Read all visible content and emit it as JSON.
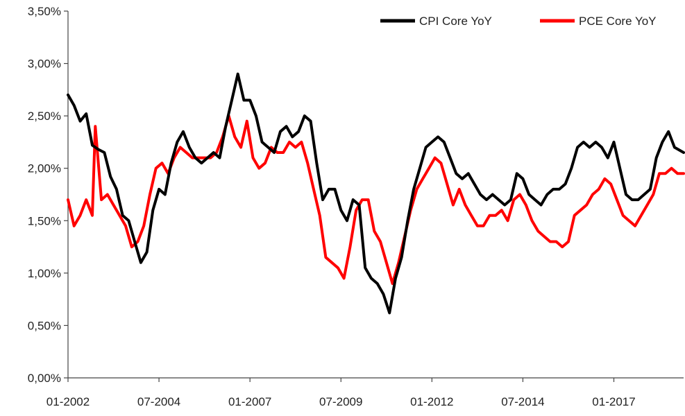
{
  "chart_data": {
    "type": "line",
    "title": "",
    "xlabel": "",
    "ylabel": "",
    "xlim": [
      "2002-01",
      "2018-12"
    ],
    "ylim": [
      0,
      3.5
    ],
    "y_ticks": [
      0,
      0.5,
      1.0,
      1.5,
      2.0,
      2.5,
      3.0,
      3.5
    ],
    "y_tick_labels": [
      "0,00%",
      "0,50%",
      "1,00%",
      "1,50%",
      "2,00%",
      "2,50%",
      "3,00%",
      "3,50%"
    ],
    "x_ticks": [
      "2002-01",
      "2004-07",
      "2007-01",
      "2009-07",
      "2012-01",
      "2014-07",
      "2017-01"
    ],
    "x_tick_labels": [
      "01-2002",
      "07-2004",
      "01-2007",
      "07-2009",
      "01-2012",
      "07-2014",
      "01-2017"
    ],
    "grid": false,
    "legend_position": "top-right",
    "series": [
      {
        "name": "CPI Core YoY",
        "color": "#000000",
        "points": [
          [
            "2002-01",
            2.7
          ],
          [
            "2002-03",
            2.6
          ],
          [
            "2002-05",
            2.45
          ],
          [
            "2002-07",
            2.52
          ],
          [
            "2002-09",
            2.22
          ],
          [
            "2002-11",
            2.18
          ],
          [
            "2003-01",
            2.15
          ],
          [
            "2003-03",
            1.92
          ],
          [
            "2003-05",
            1.8
          ],
          [
            "2003-07",
            1.55
          ],
          [
            "2003-09",
            1.5
          ],
          [
            "2003-11",
            1.3
          ],
          [
            "2004-01",
            1.1
          ],
          [
            "2004-03",
            1.2
          ],
          [
            "2004-05",
            1.6
          ],
          [
            "2004-07",
            1.8
          ],
          [
            "2004-09",
            1.75
          ],
          [
            "2004-11",
            2.05
          ],
          [
            "2005-01",
            2.25
          ],
          [
            "2005-03",
            2.35
          ],
          [
            "2005-05",
            2.2
          ],
          [
            "2005-07",
            2.1
          ],
          [
            "2005-09",
            2.05
          ],
          [
            "2005-11",
            2.1
          ],
          [
            "2006-01",
            2.15
          ],
          [
            "2006-03",
            2.1
          ],
          [
            "2006-05",
            2.4
          ],
          [
            "2006-07",
            2.65
          ],
          [
            "2006-09",
            2.9
          ],
          [
            "2006-11",
            2.65
          ],
          [
            "2007-01",
            2.65
          ],
          [
            "2007-03",
            2.5
          ],
          [
            "2007-05",
            2.25
          ],
          [
            "2007-07",
            2.2
          ],
          [
            "2007-09",
            2.15
          ],
          [
            "2007-11",
            2.35
          ],
          [
            "2008-01",
            2.4
          ],
          [
            "2008-03",
            2.3
          ],
          [
            "2008-05",
            2.35
          ],
          [
            "2008-07",
            2.5
          ],
          [
            "2008-09",
            2.45
          ],
          [
            "2008-11",
            2.05
          ],
          [
            "2009-01",
            1.7
          ],
          [
            "2009-03",
            1.8
          ],
          [
            "2009-05",
            1.8
          ],
          [
            "2009-07",
            1.6
          ],
          [
            "2009-09",
            1.5
          ],
          [
            "2009-11",
            1.7
          ],
          [
            "2010-01",
            1.65
          ],
          [
            "2010-03",
            1.05
          ],
          [
            "2010-05",
            0.95
          ],
          [
            "2010-07",
            0.9
          ],
          [
            "2010-09",
            0.8
          ],
          [
            "2010-11",
            0.62
          ],
          [
            "2011-01",
            0.95
          ],
          [
            "2011-03",
            1.15
          ],
          [
            "2011-05",
            1.5
          ],
          [
            "2011-07",
            1.8
          ],
          [
            "2011-09",
            2.0
          ],
          [
            "2011-11",
            2.2
          ],
          [
            "2012-01",
            2.25
          ],
          [
            "2012-03",
            2.3
          ],
          [
            "2012-05",
            2.25
          ],
          [
            "2012-07",
            2.1
          ],
          [
            "2012-09",
            1.95
          ],
          [
            "2012-11",
            1.9
          ],
          [
            "2013-01",
            1.95
          ],
          [
            "2013-03",
            1.85
          ],
          [
            "2013-05",
            1.75
          ],
          [
            "2013-07",
            1.7
          ],
          [
            "2013-09",
            1.75
          ],
          [
            "2013-11",
            1.7
          ],
          [
            "2014-01",
            1.65
          ],
          [
            "2014-03",
            1.7
          ],
          [
            "2014-05",
            1.95
          ],
          [
            "2014-07",
            1.9
          ],
          [
            "2014-09",
            1.75
          ],
          [
            "2014-11",
            1.7
          ],
          [
            "2015-01",
            1.65
          ],
          [
            "2015-03",
            1.75
          ],
          [
            "2015-05",
            1.8
          ],
          [
            "2015-07",
            1.8
          ],
          [
            "2015-09",
            1.85
          ],
          [
            "2015-11",
            2.0
          ],
          [
            "2016-01",
            2.2
          ],
          [
            "2016-03",
            2.25
          ],
          [
            "2016-05",
            2.2
          ],
          [
            "2016-07",
            2.25
          ],
          [
            "2016-09",
            2.2
          ],
          [
            "2016-11",
            2.1
          ],
          [
            "2017-01",
            2.25
          ],
          [
            "2017-03",
            2.0
          ],
          [
            "2017-05",
            1.75
          ],
          [
            "2017-07",
            1.7
          ],
          [
            "2017-09",
            1.7
          ],
          [
            "2017-11",
            1.75
          ],
          [
            "2018-01",
            1.8
          ],
          [
            "2018-03",
            2.1
          ],
          [
            "2018-05",
            2.25
          ],
          [
            "2018-07",
            2.35
          ],
          [
            "2018-09",
            2.2
          ],
          [
            "2018-12",
            2.15
          ]
        ]
      },
      {
        "name": "PCE Core YoY",
        "color": "#ff0000",
        "points": [
          [
            "2002-01",
            1.7
          ],
          [
            "2002-03",
            1.45
          ],
          [
            "2002-05",
            1.55
          ],
          [
            "2002-07",
            1.7
          ],
          [
            "2002-09",
            1.55
          ],
          [
            "2002-10",
            2.4
          ],
          [
            "2002-12",
            1.7
          ],
          [
            "2003-02",
            1.75
          ],
          [
            "2003-04",
            1.65
          ],
          [
            "2003-06",
            1.55
          ],
          [
            "2003-08",
            1.45
          ],
          [
            "2003-10",
            1.25
          ],
          [
            "2003-12",
            1.3
          ],
          [
            "2004-02",
            1.45
          ],
          [
            "2004-04",
            1.75
          ],
          [
            "2004-06",
            2.0
          ],
          [
            "2004-08",
            2.05
          ],
          [
            "2004-10",
            1.95
          ],
          [
            "2004-12",
            2.1
          ],
          [
            "2005-02",
            2.2
          ],
          [
            "2005-04",
            2.15
          ],
          [
            "2005-06",
            2.1
          ],
          [
            "2005-08",
            2.1
          ],
          [
            "2005-10",
            2.1
          ],
          [
            "2005-12",
            2.1
          ],
          [
            "2006-02",
            2.15
          ],
          [
            "2006-04",
            2.3
          ],
          [
            "2006-06",
            2.5
          ],
          [
            "2006-08",
            2.3
          ],
          [
            "2006-10",
            2.2
          ],
          [
            "2006-12",
            2.45
          ],
          [
            "2007-02",
            2.1
          ],
          [
            "2007-04",
            2.0
          ],
          [
            "2007-06",
            2.05
          ],
          [
            "2007-08",
            2.2
          ],
          [
            "2007-10",
            2.15
          ],
          [
            "2007-12",
            2.15
          ],
          [
            "2008-02",
            2.25
          ],
          [
            "2008-04",
            2.2
          ],
          [
            "2008-06",
            2.25
          ],
          [
            "2008-08",
            2.05
          ],
          [
            "2008-10",
            1.8
          ],
          [
            "2008-12",
            1.55
          ],
          [
            "2009-02",
            1.15
          ],
          [
            "2009-04",
            1.1
          ],
          [
            "2009-06",
            1.05
          ],
          [
            "2009-08",
            0.95
          ],
          [
            "2009-10",
            1.25
          ],
          [
            "2009-12",
            1.6
          ],
          [
            "2010-02",
            1.7
          ],
          [
            "2010-04",
            1.7
          ],
          [
            "2010-06",
            1.4
          ],
          [
            "2010-08",
            1.3
          ],
          [
            "2010-10",
            1.1
          ],
          [
            "2010-12",
            0.9
          ],
          [
            "2011-02",
            1.1
          ],
          [
            "2011-04",
            1.35
          ],
          [
            "2011-06",
            1.6
          ],
          [
            "2011-08",
            1.8
          ],
          [
            "2011-10",
            1.9
          ],
          [
            "2011-12",
            2.0
          ],
          [
            "2012-02",
            2.1
          ],
          [
            "2012-04",
            2.05
          ],
          [
            "2012-06",
            1.85
          ],
          [
            "2012-08",
            1.65
          ],
          [
            "2012-10",
            1.8
          ],
          [
            "2012-12",
            1.65
          ],
          [
            "2013-02",
            1.55
          ],
          [
            "2013-04",
            1.45
          ],
          [
            "2013-06",
            1.45
          ],
          [
            "2013-08",
            1.55
          ],
          [
            "2013-10",
            1.55
          ],
          [
            "2013-12",
            1.6
          ],
          [
            "2014-02",
            1.5
          ],
          [
            "2014-04",
            1.7
          ],
          [
            "2014-06",
            1.75
          ],
          [
            "2014-08",
            1.65
          ],
          [
            "2014-10",
            1.5
          ],
          [
            "2014-12",
            1.4
          ],
          [
            "2015-02",
            1.35
          ],
          [
            "2015-04",
            1.3
          ],
          [
            "2015-06",
            1.3
          ],
          [
            "2015-08",
            1.25
          ],
          [
            "2015-10",
            1.3
          ],
          [
            "2015-12",
            1.55
          ],
          [
            "2016-02",
            1.6
          ],
          [
            "2016-04",
            1.65
          ],
          [
            "2016-06",
            1.75
          ],
          [
            "2016-08",
            1.8
          ],
          [
            "2016-10",
            1.9
          ],
          [
            "2016-12",
            1.85
          ],
          [
            "2017-02",
            1.7
          ],
          [
            "2017-04",
            1.55
          ],
          [
            "2017-06",
            1.5
          ],
          [
            "2017-08",
            1.45
          ],
          [
            "2017-10",
            1.55
          ],
          [
            "2017-12",
            1.65
          ],
          [
            "2018-02",
            1.75
          ],
          [
            "2018-04",
            1.95
          ],
          [
            "2018-06",
            1.95
          ],
          [
            "2018-08",
            2.0
          ],
          [
            "2018-10",
            1.95
          ],
          [
            "2018-12",
            1.95
          ]
        ]
      }
    ]
  }
}
